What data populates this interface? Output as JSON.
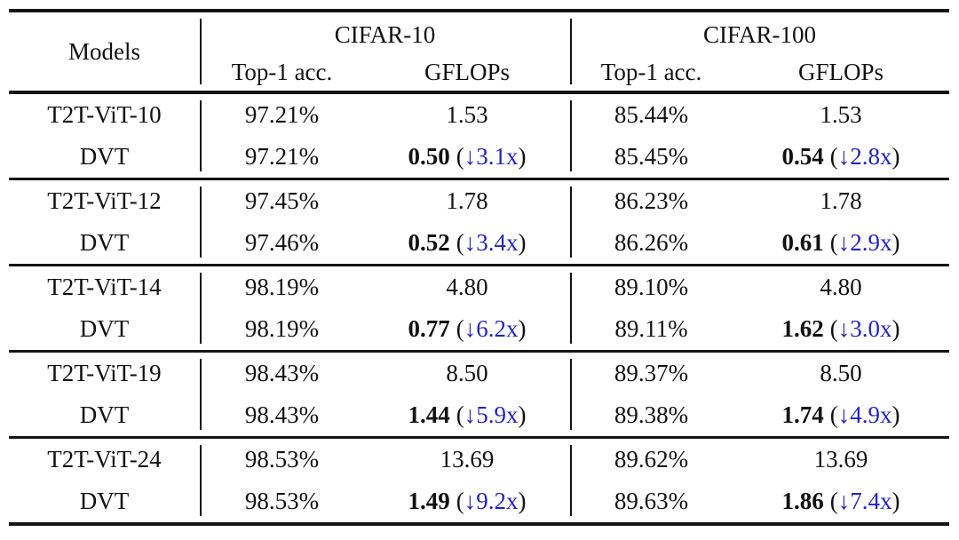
{
  "table": {
    "header": {
      "models_label": "Models",
      "groups": [
        {
          "title": "CIFAR-10",
          "col1": "Top-1 acc.",
          "col2": "GFLOPs"
        },
        {
          "title": "CIFAR-100",
          "col1": "Top-1 acc.",
          "col2": "GFLOPs"
        }
      ]
    },
    "symbols": {
      "paren_open": "(",
      "paren_close": ")"
    },
    "colors": {
      "text": "#111111",
      "accent_blue": "#2323c8",
      "rule": "#141414"
    },
    "groups": [
      {
        "base": {
          "model": "T2T-ViT-10",
          "c10_acc": "97.21%",
          "c10_gflops": "1.53",
          "c100_acc": "85.44%",
          "c100_gflops": "1.53"
        },
        "dvt": {
          "model": "DVT",
          "c10_acc": "97.21%",
          "c10_gflops": "0.50",
          "c10_speedup": "↓3.1x",
          "c100_acc": "85.45%",
          "c100_gflops": "0.54",
          "c100_speedup": "↓2.8x"
        }
      },
      {
        "base": {
          "model": "T2T-ViT-12",
          "c10_acc": "97.45%",
          "c10_gflops": "1.78",
          "c100_acc": "86.23%",
          "c100_gflops": "1.78"
        },
        "dvt": {
          "model": "DVT",
          "c10_acc": "97.46%",
          "c10_gflops": "0.52",
          "c10_speedup": "↓3.4x",
          "c100_acc": "86.26%",
          "c100_gflops": "0.61",
          "c100_speedup": "↓2.9x"
        }
      },
      {
        "base": {
          "model": "T2T-ViT-14",
          "c10_acc": "98.19%",
          "c10_gflops": "4.80",
          "c100_acc": "89.10%",
          "c100_gflops": "4.80"
        },
        "dvt": {
          "model": "DVT",
          "c10_acc": "98.19%",
          "c10_gflops": "0.77",
          "c10_speedup": "↓6.2x",
          "c100_acc": "89.11%",
          "c100_gflops": "1.62",
          "c100_speedup": "↓3.0x"
        }
      },
      {
        "base": {
          "model": "T2T-ViT-19",
          "c10_acc": "98.43%",
          "c10_gflops": "8.50",
          "c100_acc": "89.37%",
          "c100_gflops": "8.50"
        },
        "dvt": {
          "model": "DVT",
          "c10_acc": "98.43%",
          "c10_gflops": "1.44",
          "c10_speedup": "↓5.9x",
          "c100_acc": "89.38%",
          "c100_gflops": "1.74",
          "c100_speedup": "↓4.9x"
        }
      },
      {
        "base": {
          "model": "T2T-ViT-24",
          "c10_acc": "98.53%",
          "c10_gflops": "13.69",
          "c100_acc": "89.62%",
          "c100_gflops": "13.69"
        },
        "dvt": {
          "model": "DVT",
          "c10_acc": "98.53%",
          "c10_gflops": "1.49",
          "c10_speedup": "↓9.2x",
          "c100_acc": "89.63%",
          "c100_gflops": "1.86",
          "c100_speedup": "↓7.4x"
        }
      }
    ]
  }
}
